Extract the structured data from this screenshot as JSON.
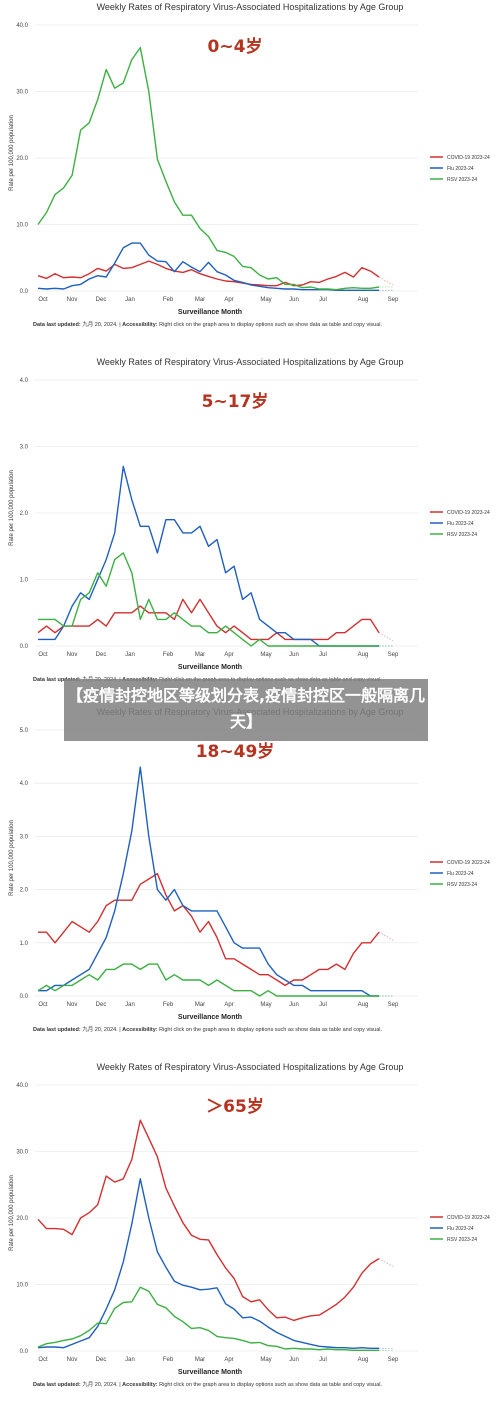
{
  "overlay_text": "【疫情封控地区等级划分表,疫情封控区一般隔离几天】",
  "chart_data": [
    {
      "type": "line",
      "title": "Weekly Rates of Respiratory Virus-Associated Hospitalizations by Age Group",
      "label": "0~4岁",
      "ylabel": "Rate per 100,000 population",
      "xlabel": "Surveillance Month",
      "ylim": [
        0,
        40
      ],
      "yticks": [
        "0.0",
        "10.0",
        "20.0",
        "30.0",
        "40.0"
      ],
      "x_ticks": [
        "Oct",
        "Nov",
        "Dec",
        "Jan",
        "Feb",
        "Mar",
        "Apr",
        "May",
        "Jun",
        "Jul",
        "Aug",
        "Sep"
      ],
      "legend_position": "right",
      "series": [
        {
          "name": "COVID-19 2023-24",
          "color": "#d32f2f",
          "values": [
            2.3,
            1.9,
            2.6,
            2.0,
            2.1,
            2.0,
            2.6,
            3.4,
            3.0,
            4.0,
            3.4,
            3.5,
            4.0,
            4.5,
            4.0,
            3.4,
            3.0,
            2.8,
            3.2,
            2.6,
            2.2,
            1.8,
            1.5,
            1.4,
            1.2,
            1.0,
            0.9,
            0.8,
            0.8,
            1.3,
            0.8,
            0.9,
            1.4,
            1.3,
            1.8,
            2.2,
            2.8,
            2.1,
            3.5,
            3.0,
            2.1
          ]
        },
        {
          "name": "Flu 2023-24",
          "color": "#1f5fbf",
          "values": [
            0.4,
            0.3,
            0.4,
            0.3,
            0.8,
            1.0,
            1.8,
            2.3,
            2.1,
            4.2,
            6.5,
            7.2,
            7.2,
            5.4,
            4.5,
            4.4,
            2.9,
            4.4,
            3.6,
            2.9,
            4.3,
            2.9,
            2.4,
            1.6,
            1.3,
            0.9,
            0.7,
            0.5,
            0.4,
            0.3,
            0.3,
            0.2,
            0.2,
            0.2,
            0.2,
            0.1,
            0.1,
            0.1,
            0.1,
            0.1,
            0.1
          ]
        },
        {
          "name": "RSV 2023-24",
          "color": "#3cb043",
          "values": [
            10.0,
            11.8,
            14.5,
            15.5,
            17.4,
            24.2,
            25.3,
            28.8,
            33.3,
            30.5,
            31.3,
            34.8,
            36.6,
            30.0,
            19.8,
            16.5,
            13.4,
            11.4,
            11.4,
            9.4,
            8.2,
            6.1,
            5.8,
            5.2,
            3.7,
            3.5,
            2.4,
            1.8,
            2.0,
            1.0,
            1.0,
            0.5,
            0.6,
            0.3,
            0.3,
            0.2,
            0.4,
            0.5,
            0.4,
            0.4,
            0.6
          ]
        }
      ]
    },
    {
      "type": "line",
      "title": "Weekly Rates of Respiratory Virus-Associated Hospitalizations by Age Group",
      "label": "5~17岁",
      "ylabel": "Rate per 100,000 population",
      "xlabel": "Surveillance Month",
      "ylim": [
        0,
        4
      ],
      "yticks": [
        "0.0",
        "1.0",
        "2.0",
        "3.0",
        "4.0"
      ],
      "x_ticks": [
        "Oct",
        "Nov",
        "Dec",
        "Jan",
        "Feb",
        "Mar",
        "Apr",
        "May",
        "Jun",
        "Jul",
        "Aug",
        "Sep"
      ],
      "legend_position": "right",
      "series": [
        {
          "name": "COVID-19 2023-24",
          "color": "#d32f2f",
          "values": [
            0.2,
            0.3,
            0.2,
            0.3,
            0.3,
            0.3,
            0.3,
            0.4,
            0.3,
            0.5,
            0.5,
            0.5,
            0.6,
            0.5,
            0.5,
            0.5,
            0.4,
            0.7,
            0.5,
            0.7,
            0.5,
            0.3,
            0.2,
            0.3,
            0.2,
            0.1,
            0.1,
            0.1,
            0.2,
            0.1,
            0.1,
            0.1,
            0.1,
            0.1,
            0.1,
            0.2,
            0.2,
            0.3,
            0.4,
            0.4,
            0.2
          ]
        },
        {
          "name": "Flu 2023-24",
          "color": "#1f5fbf",
          "values": [
            0.1,
            0.1,
            0.1,
            0.3,
            0.6,
            0.8,
            0.7,
            1.0,
            1.3,
            1.7,
            2.7,
            2.2,
            1.8,
            1.8,
            1.4,
            1.9,
            1.9,
            1.7,
            1.7,
            1.8,
            1.5,
            1.6,
            1.1,
            1.2,
            0.7,
            0.8,
            0.4,
            0.3,
            0.2,
            0.2,
            0.1,
            0.1,
            0.1,
            0.0,
            0.0,
            0.0,
            0.0,
            0.0,
            0.0,
            0.0,
            0.0
          ]
        },
        {
          "name": "RSV 2023-24",
          "color": "#3cb043",
          "values": [
            0.4,
            0.4,
            0.4,
            0.3,
            0.3,
            0.7,
            0.8,
            1.1,
            0.9,
            1.3,
            1.4,
            1.1,
            0.4,
            0.7,
            0.4,
            0.4,
            0.5,
            0.4,
            0.3,
            0.3,
            0.2,
            0.2,
            0.3,
            0.2,
            0.1,
            0.0,
            0.1,
            0.0,
            0.0,
            0.0,
            0.0,
            0.0,
            0.0,
            0.0,
            0.0,
            0.0,
            0.0,
            0.0,
            0.0,
            0.0,
            0.0
          ]
        }
      ]
    },
    {
      "type": "line",
      "title": "Weekly Rates of Respiratory Virus-Associated Hospitalizations by Age Group",
      "label": "18~49岁",
      "ylabel": "Rate per 100,000 population",
      "xlabel": "Surveillance Month",
      "ylim": [
        0,
        5
      ],
      "yticks": [
        "0.0",
        "1.0",
        "2.0",
        "3.0",
        "4.0",
        "5.0"
      ],
      "x_ticks": [
        "Oct",
        "Nov",
        "Dec",
        "Jan",
        "Feb",
        "Mar",
        "Apr",
        "May",
        "Jun",
        "Jul",
        "Aug",
        "Sep"
      ],
      "legend_position": "right",
      "series": [
        {
          "name": "COVID-19 2023-24",
          "color": "#d32f2f",
          "values": [
            1.2,
            1.2,
            1.0,
            1.2,
            1.4,
            1.3,
            1.2,
            1.4,
            1.7,
            1.8,
            1.8,
            1.8,
            2.1,
            2.2,
            2.3,
            1.9,
            1.6,
            1.7,
            1.5,
            1.2,
            1.4,
            1.1,
            0.7,
            0.7,
            0.6,
            0.5,
            0.4,
            0.4,
            0.3,
            0.2,
            0.3,
            0.3,
            0.4,
            0.5,
            0.5,
            0.6,
            0.5,
            0.8,
            1.0,
            1.0,
            1.2
          ]
        },
        {
          "name": "Flu 2023-24",
          "color": "#1f5fbf",
          "values": [
            0.1,
            0.1,
            0.2,
            0.2,
            0.3,
            0.4,
            0.5,
            0.8,
            1.1,
            1.6,
            2.3,
            3.1,
            4.3,
            3.0,
            2.0,
            1.8,
            2.0,
            1.7,
            1.6,
            1.6,
            1.6,
            1.6,
            1.3,
            1.0,
            0.9,
            0.9,
            0.9,
            0.6,
            0.4,
            0.3,
            0.2,
            0.2,
            0.1,
            0.1,
            0.1,
            0.1,
            0.1,
            0.1,
            0.1,
            0.0,
            0.0
          ]
        },
        {
          "name": "RSV 2023-24",
          "color": "#3cb043",
          "values": [
            0.1,
            0.2,
            0.1,
            0.2,
            0.2,
            0.3,
            0.4,
            0.3,
            0.5,
            0.5,
            0.6,
            0.6,
            0.5,
            0.6,
            0.6,
            0.3,
            0.4,
            0.3,
            0.3,
            0.3,
            0.2,
            0.3,
            0.2,
            0.1,
            0.1,
            0.1,
            0.0,
            0.1,
            0.0,
            0.0,
            0.0,
            0.0,
            0.0,
            0.0,
            0.0,
            0.0,
            0.0,
            0.0,
            0.0,
            0.0,
            0.0
          ]
        }
      ]
    },
    {
      "type": "line",
      "title": "Weekly Rates of Respiratory Virus-Associated Hospitalizations by Age Group",
      "label": "＞65岁",
      "ylabel": "Rate per 100,000 population",
      "xlabel": "Surveillance Month",
      "ylim": [
        0,
        40
      ],
      "yticks": [
        "0.0",
        "10.0",
        "20.0",
        "30.0",
        "40.0"
      ],
      "x_ticks": [
        "Oct",
        "Nov",
        "Dec",
        "Jan",
        "Feb",
        "Mar",
        "Apr",
        "May",
        "Jun",
        "Jul",
        "Aug",
        "Sep"
      ],
      "legend_position": "right",
      "series": [
        {
          "name": "COVID-19 2023-24",
          "color": "#d32f2f",
          "values": [
            19.8,
            18.4,
            18.4,
            18.3,
            17.5,
            20.0,
            20.8,
            22.0,
            26.3,
            25.4,
            25.9,
            28.8,
            34.7,
            32.0,
            29.2,
            24.5,
            21.8,
            19.3,
            17.4,
            16.8,
            16.7,
            14.5,
            12.5,
            10.9,
            8.2,
            7.4,
            7.7,
            6.2,
            5.0,
            5.1,
            4.6,
            5.0,
            5.3,
            5.4,
            6.2,
            7.0,
            8.1,
            9.6,
            11.7,
            13.1,
            13.9
          ]
        },
        {
          "name": "Flu 2023-24",
          "color": "#1f5fbf",
          "values": [
            0.5,
            0.6,
            0.6,
            0.5,
            1.0,
            1.5,
            2.0,
            3.7,
            6.3,
            9.2,
            13.4,
            19.1,
            25.9,
            20.0,
            14.9,
            12.6,
            10.5,
            9.9,
            9.6,
            9.2,
            9.3,
            9.5,
            7.1,
            6.3,
            5.0,
            5.1,
            4.5,
            3.6,
            2.8,
            2.2,
            1.6,
            1.3,
            1.0,
            0.7,
            0.6,
            0.5,
            0.5,
            0.4,
            0.5,
            0.4,
            0.4
          ]
        },
        {
          "name": "RSV 2023-24",
          "color": "#3cb043",
          "values": [
            0.6,
            1.1,
            1.3,
            1.6,
            1.8,
            2.3,
            3.1,
            4.2,
            4.1,
            6.4,
            7.3,
            7.4,
            9.6,
            9.0,
            7.0,
            6.5,
            5.2,
            4.4,
            3.4,
            3.5,
            3.1,
            2.2,
            2.0,
            1.9,
            1.6,
            1.2,
            1.3,
            0.8,
            0.7,
            0.3,
            0.4,
            0.3,
            0.3,
            0.2,
            0.3,
            0.2,
            0.2,
            0.1,
            0.1,
            0.1,
            0.1
          ]
        }
      ]
    }
  ],
  "footnote": {
    "updated_label": "Data last updated:",
    "updated_value": " 九月 20, 2024. | ",
    "accessibility_label": "Accessibility:",
    "accessibility_value": " Right click on the graph area to display options such as show data as table and copy visual."
  }
}
